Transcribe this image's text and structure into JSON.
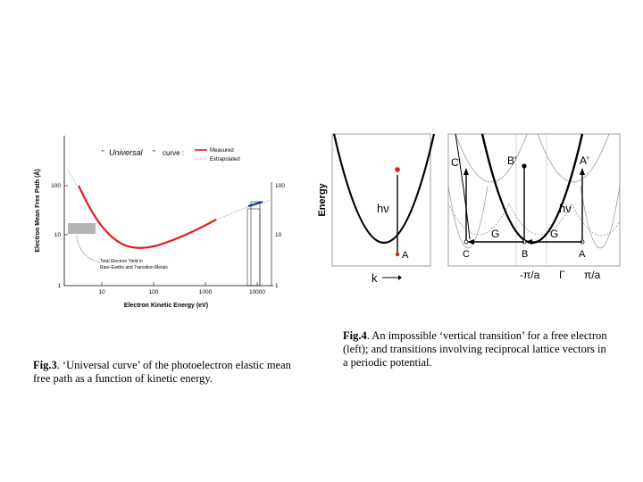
{
  "fig3": {
    "ylabel": "Electron Mean Free Path (Å)",
    "xlabel": "Electron Kinetic Energy (eV)",
    "title_quote_open": "\"",
    "title_word": "Universal",
    "title_quote_close": "\"",
    "title_rest": "curve :",
    "legend": {
      "measured": "Measured",
      "extrapolated": "Extrapolated"
    },
    "annotation_line1": "Total Electron Yield in",
    "annotation_line2": "Rare-Earths and Transition Metals",
    "left_ticks": [
      "100",
      "10",
      "1"
    ],
    "right_ticks": [
      "100",
      "10",
      "1"
    ],
    "x_ticks": [
      "10",
      "100",
      "1000",
      "10000"
    ],
    "colors": {
      "measured": "#e02020",
      "extrapolated": "#888888",
      "blue_segment": "#1030a0",
      "shaded": "#b4b4b4"
    }
  },
  "fig4": {
    "energy_label": "Energy",
    "hv_left": "hν",
    "hv_right": "hν",
    "k_label": "k",
    "left_A": "A",
    "top_labels": {
      "c_prime": "C'",
      "b_prime": "B'",
      "a_prime": "A'"
    },
    "g1": "G",
    "g2": "G",
    "bottom_labels": {
      "c": "C",
      "b": "B",
      "a": "A"
    },
    "axis_labels": {
      "minus_pi_a": "-π/a",
      "gamma": "Γ",
      "pi_a": "π/a"
    },
    "colors": {
      "dot_red": "#d02020",
      "frame": "#888888",
      "gray_band": "#999999"
    }
  },
  "captions": {
    "fig3_label": "Fig.3",
    "fig3_text": ". ‘Universal curve’ of the photoelectron elastic mean free path as a function of kinetic energy.",
    "fig4_label": "Fig.4",
    "fig4_text": ". An impossible ‘vertical transition’ for a free electron (left); and transitions involving reciprocal lattice vectors in a periodic potential."
  }
}
